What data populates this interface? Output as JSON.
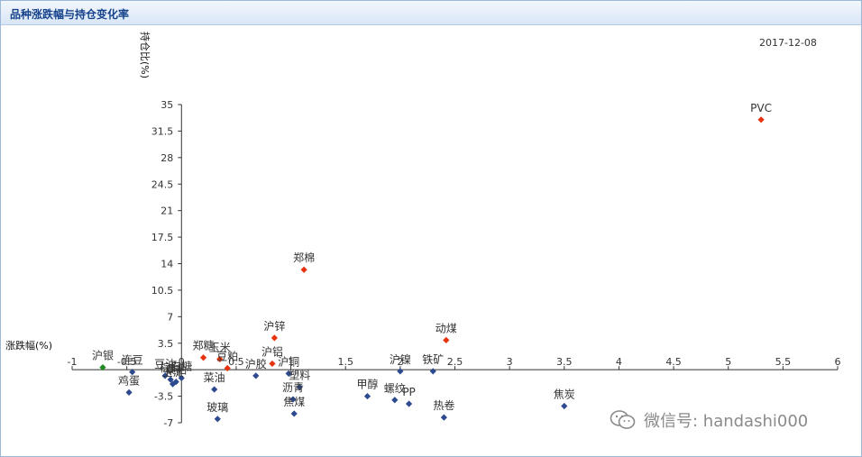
{
  "panel": {
    "title": "品种涨跌幅与持仓变化率",
    "date": "2017-12-08"
  },
  "watermark": {
    "icon": "wechat-icon",
    "text": "微信号: handashi000"
  },
  "chart_data": {
    "type": "scatter",
    "title": "品种涨跌幅与持仓变化率",
    "xlabel": "涨跌幅(%)",
    "ylabel": "持仓比(%)",
    "xlim": [
      -1,
      6
    ],
    "ylim": [
      -7,
      35
    ],
    "xticks": [
      "-1",
      "-0.5",
      "0",
      "0.5",
      "1",
      "1.5",
      "2",
      "2.5",
      "3",
      "3.5",
      "4",
      "4.5",
      "5",
      "5.5",
      "6"
    ],
    "yticks": [
      "35",
      "31.5",
      "28",
      "24.5",
      "21",
      "17.5",
      "14",
      "10.5",
      "7",
      "3.5",
      "0",
      "-3.5",
      "-7"
    ],
    "colors": {
      "up": "#e8320e",
      "down": "#2d4a8e",
      "mixed": "#1f8a1f"
    },
    "points": [
      {
        "name": "PVC",
        "x": 5.3,
        "y": 33.0,
        "group": "up"
      },
      {
        "name": "郑棉",
        "x": 1.12,
        "y": 13.2,
        "group": "up"
      },
      {
        "name": "沪锌",
        "x": 0.85,
        "y": 4.2,
        "group": "up"
      },
      {
        "name": "动煤",
        "x": 2.42,
        "y": 3.9,
        "group": "up"
      },
      {
        "name": "郑糖",
        "x": 0.2,
        "y": 1.6,
        "group": "up"
      },
      {
        "name": "玉米",
        "x": 0.35,
        "y": 1.4,
        "group": "up"
      },
      {
        "name": "豆粕",
        "x": 0.42,
        "y": 0.2,
        "group": "up"
      },
      {
        "name": "沪铝",
        "x": 0.83,
        "y": 0.8,
        "group": "up"
      },
      {
        "name": "沪银",
        "x": -0.72,
        "y": 0.3,
        "group": "mixed"
      },
      {
        "name": "连豆",
        "x": -0.45,
        "y": -0.3,
        "group": "down"
      },
      {
        "name": "鸡蛋",
        "x": -0.48,
        "y": -3.0,
        "group": "down"
      },
      {
        "name": "豆油",
        "x": -0.15,
        "y": -0.8,
        "group": "down"
      },
      {
        "name": "棕榈",
        "x": -0.1,
        "y": -1.3,
        "group": "down"
      },
      {
        "name": "玉淀",
        "x": -0.08,
        "y": -1.9,
        "group": "down"
      },
      {
        "name": "菜粕",
        "x": -0.05,
        "y": -1.6,
        "group": "down"
      },
      {
        "name": "白糖",
        "x": 0.0,
        "y": -1.1,
        "group": "down"
      },
      {
        "name": "菜油",
        "x": 0.3,
        "y": -2.6,
        "group": "down"
      },
      {
        "name": "玻璃",
        "x": 0.33,
        "y": -6.5,
        "group": "down"
      },
      {
        "name": "沪胶",
        "x": 0.68,
        "y": -0.8,
        "group": "down"
      },
      {
        "name": "沪铜",
        "x": 0.98,
        "y": -0.5,
        "group": "down"
      },
      {
        "name": "塑料",
        "x": 1.08,
        "y": -2.3,
        "group": "down"
      },
      {
        "name": "沥青",
        "x": 1.02,
        "y": -3.9,
        "group": "down"
      },
      {
        "name": "焦煤",
        "x": 1.03,
        "y": -5.8,
        "group": "down"
      },
      {
        "name": "甲醇",
        "x": 1.7,
        "y": -3.5,
        "group": "down"
      },
      {
        "name": "螺纹",
        "x": 1.95,
        "y": -4.0,
        "group": "down"
      },
      {
        "name": "沪镍",
        "x": 2.0,
        "y": -0.2,
        "group": "down"
      },
      {
        "name": "PP",
        "x": 2.08,
        "y": -4.5,
        "group": "down"
      },
      {
        "name": "铁矿",
        "x": 2.3,
        "y": -0.2,
        "group": "down"
      },
      {
        "name": "热卷",
        "x": 2.4,
        "y": -6.3,
        "group": "down"
      },
      {
        "name": "焦炭",
        "x": 3.5,
        "y": -4.8,
        "group": "down"
      }
    ]
  }
}
